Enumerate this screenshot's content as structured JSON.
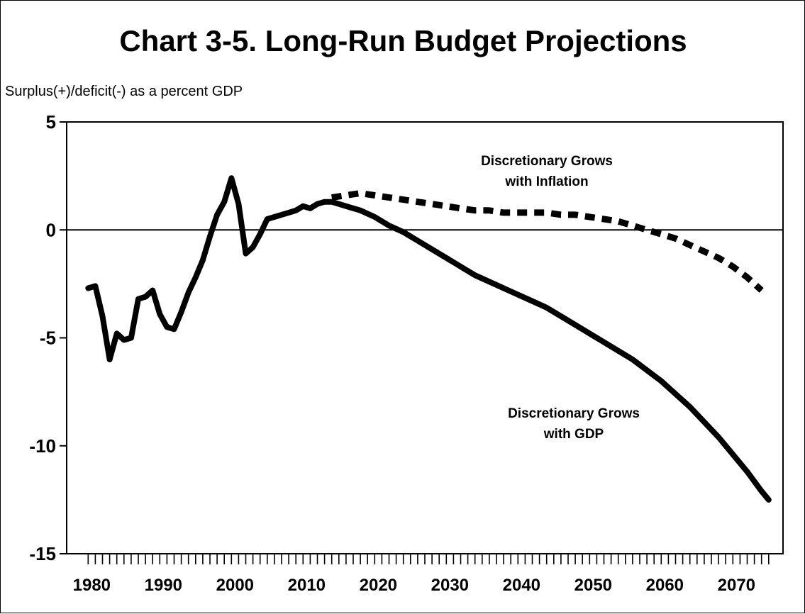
{
  "chart_data": {
    "type": "line",
    "title": "Chart 3-5.  Long-Run Budget Projections",
    "ylabel": "Surplus(+)/deficit(-) as a percent GDP",
    "xlabel": "",
    "xlim": [
      1977,
      2077
    ],
    "ylim": [
      -15,
      5
    ],
    "yticks": [
      5,
      0,
      -5,
      -10,
      -15
    ],
    "xticks": [
      1980,
      1990,
      2000,
      2010,
      2020,
      2030,
      2040,
      2050,
      2060,
      2070
    ],
    "grid": false,
    "zero_line": true,
    "series": [
      {
        "name": "Discretionary Grows with GDP",
        "style": "solid",
        "color": "#000000",
        "x": [
          1980,
          1981,
          1982,
          1983,
          1984,
          1985,
          1986,
          1987,
          1988,
          1989,
          1990,
          1991,
          1992,
          1993,
          1994,
          1995,
          1996,
          1997,
          1998,
          1999,
          2000,
          2001,
          2002,
          2003,
          2004,
          2005,
          2006,
          2007,
          2008,
          2009,
          2010,
          2011,
          2012,
          2013,
          2014,
          2015,
          2016,
          2018,
          2020,
          2022,
          2024,
          2026,
          2028,
          2030,
          2032,
          2034,
          2036,
          2038,
          2040,
          2042,
          2044,
          2046,
          2048,
          2050,
          2052,
          2054,
          2056,
          2058,
          2060,
          2062,
          2064,
          2066,
          2068,
          2070,
          2072,
          2074,
          2075
        ],
        "values": [
          -2.7,
          -2.6,
          -4.0,
          -6.0,
          -4.8,
          -5.1,
          -5.0,
          -3.2,
          -3.1,
          -2.8,
          -3.9,
          -4.5,
          -4.6,
          -3.8,
          -2.9,
          -2.2,
          -1.4,
          -0.3,
          0.7,
          1.3,
          2.4,
          1.2,
          -1.1,
          -0.8,
          -0.2,
          0.5,
          0.6,
          0.7,
          0.8,
          0.9,
          1.1,
          1.0,
          1.2,
          1.3,
          1.3,
          1.2,
          1.1,
          0.9,
          0.6,
          0.2,
          -0.1,
          -0.5,
          -0.9,
          -1.3,
          -1.7,
          -2.1,
          -2.4,
          -2.7,
          -3.0,
          -3.3,
          -3.6,
          -4.0,
          -4.4,
          -4.8,
          -5.2,
          -5.6,
          -6.0,
          -6.5,
          -7.0,
          -7.6,
          -8.2,
          -8.9,
          -9.6,
          -10.4,
          -11.2,
          -12.1,
          -12.5
        ]
      },
      {
        "name": "Discretionary Grows with Inflation",
        "style": "dashed",
        "color": "#000000",
        "x": [
          2014,
          2016,
          2018,
          2020,
          2022,
          2024,
          2026,
          2028,
          2030,
          2032,
          2034,
          2036,
          2038,
          2040,
          2042,
          2044,
          2046,
          2048,
          2050,
          2052,
          2054,
          2056,
          2058,
          2060,
          2062,
          2064,
          2066,
          2068,
          2070,
          2072,
          2074
        ],
        "values": [
          1.5,
          1.6,
          1.7,
          1.6,
          1.5,
          1.4,
          1.3,
          1.2,
          1.1,
          1.0,
          0.9,
          0.9,
          0.8,
          0.8,
          0.8,
          0.8,
          0.7,
          0.7,
          0.6,
          0.5,
          0.4,
          0.2,
          0.0,
          -0.2,
          -0.4,
          -0.7,
          -1.0,
          -1.3,
          -1.7,
          -2.2,
          -2.8
        ]
      }
    ],
    "annotations": [
      {
        "series": 1,
        "lines": [
          "Discretionary Grows",
          "with Inflation"
        ]
      },
      {
        "series": 0,
        "lines": [
          "Discretionary Grows",
          "with GDP"
        ]
      }
    ]
  }
}
